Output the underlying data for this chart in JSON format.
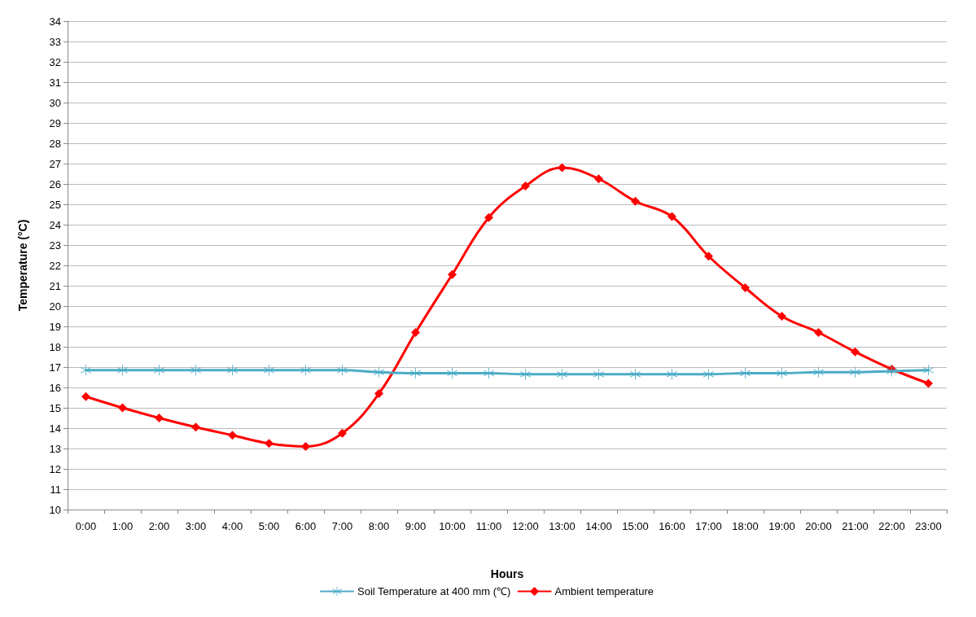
{
  "chart_data": {
    "type": "line",
    "xlabel": "Hours",
    "ylabel": "Temperature (°C)",
    "categories": [
      "0:00",
      "1:00",
      "2:00",
      "3:00",
      "4:00",
      "5:00",
      "6:00",
      "7:00",
      "8:00",
      "9:00",
      "10:00",
      "11:00",
      "12:00",
      "13:00",
      "14:00",
      "15:00",
      "16:00",
      "17:00",
      "18:00",
      "19:00",
      "20:00",
      "21:00",
      "22:00",
      "23:00"
    ],
    "series": [
      {
        "name": "Soil Temperature at 400 mm (℃)",
        "color": "#4bacc6",
        "marker": "cross",
        "values": [
          16.85,
          16.85,
          16.85,
          16.85,
          16.85,
          16.85,
          16.85,
          16.85,
          16.75,
          16.7,
          16.7,
          16.7,
          16.65,
          16.65,
          16.65,
          16.65,
          16.65,
          16.65,
          16.7,
          16.7,
          16.75,
          16.75,
          16.8,
          16.85
        ]
      },
      {
        "name": "Ambient temperature",
        "color": "#ff0000",
        "marker": "diamond",
        "values": [
          15.55,
          15.0,
          14.5,
          14.05,
          13.65,
          13.25,
          13.1,
          13.75,
          15.7,
          18.7,
          21.55,
          24.35,
          25.9,
          26.8,
          26.25,
          25.15,
          24.4,
          22.45,
          20.9,
          19.5,
          18.7,
          17.75,
          16.9,
          16.2
        ]
      }
    ],
    "ylim": [
      10,
      34
    ],
    "yticks": [
      10,
      11,
      12,
      13,
      14,
      15,
      16,
      17,
      18,
      19,
      20,
      21,
      22,
      23,
      24,
      25,
      26,
      27,
      28,
      29,
      30,
      31,
      32,
      33,
      34
    ],
    "grid": "y",
    "legend": "bottom"
  }
}
